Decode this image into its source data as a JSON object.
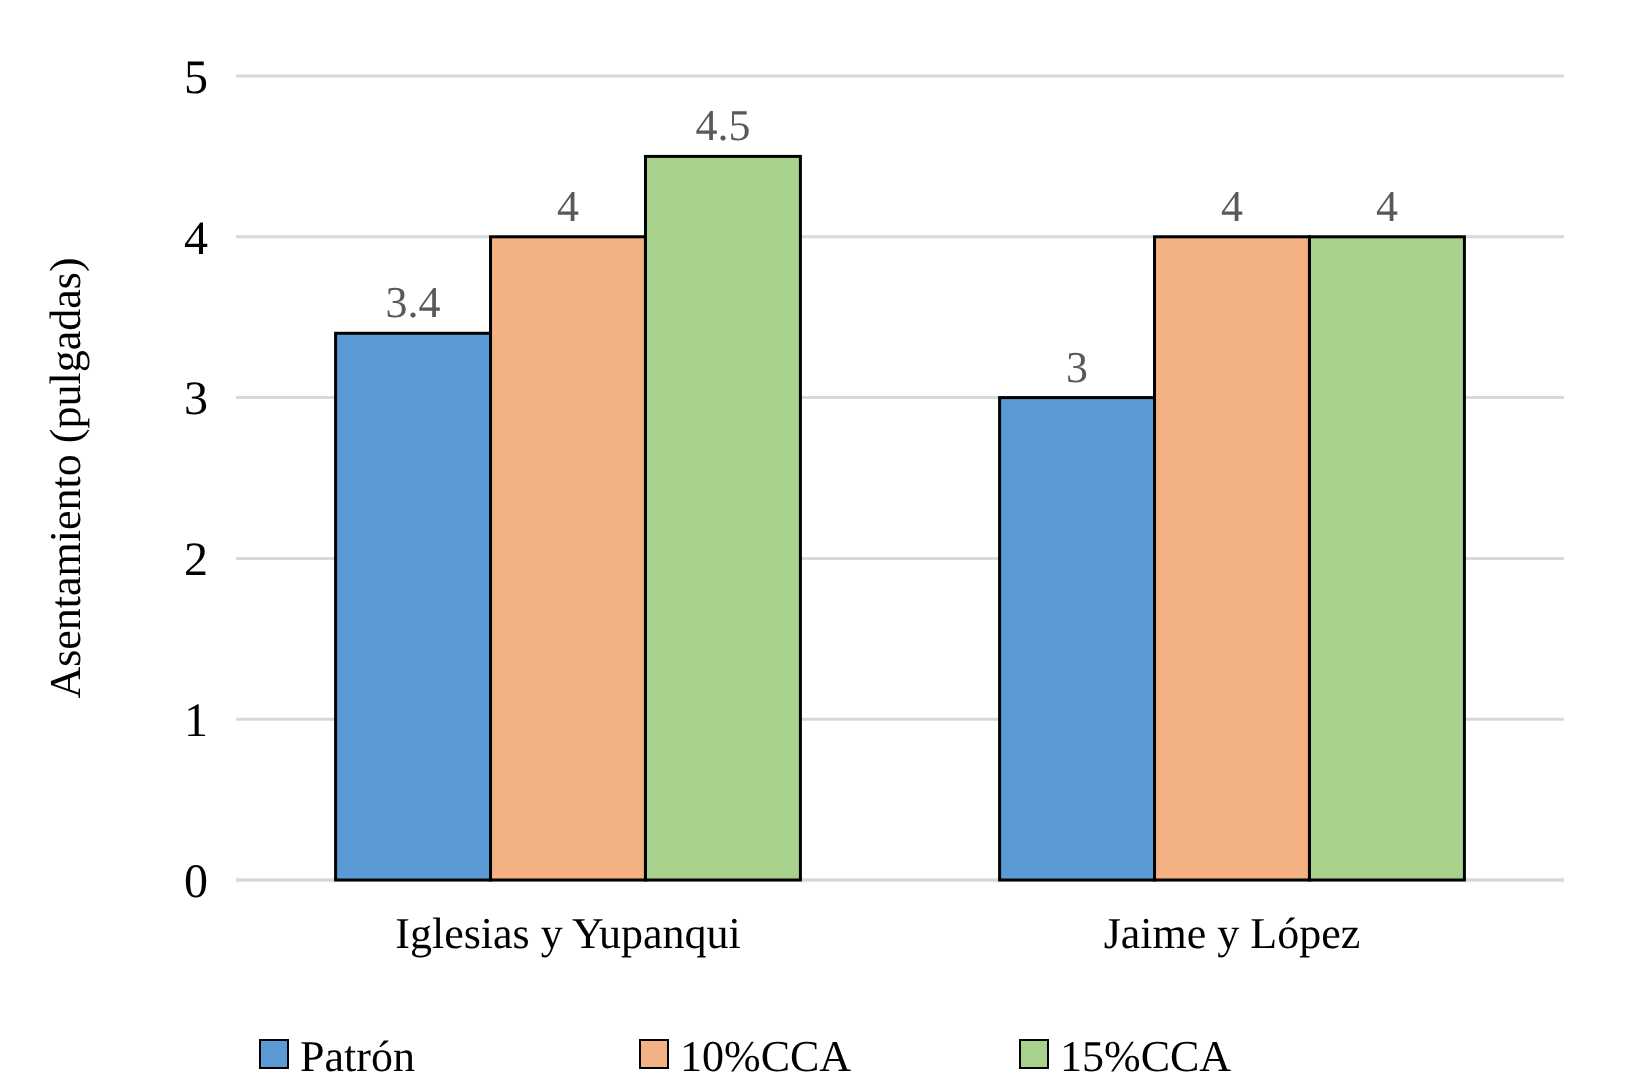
{
  "chart_data": {
    "type": "bar",
    "ylabel": "Asentamiento (pulgadas)",
    "categories": [
      "Iglesias y Yupanqui",
      "Jaime y López"
    ],
    "series": [
      {
        "name": "Patrón",
        "color": "#5b9bd5",
        "values": [
          3.4,
          3
        ]
      },
      {
        "name": "10%CCA",
        "color": "#f4b183",
        "values": [
          4,
          4
        ]
      },
      {
        "name": "15%CCA",
        "color": "#a9d18e",
        "values": [
          4.5,
          4
        ]
      }
    ],
    "ylim": [
      0,
      5
    ],
    "yticks": [
      0,
      1,
      2,
      3,
      4,
      5
    ],
    "grid": "y",
    "legend": "bottom",
    "data_labels": true
  }
}
